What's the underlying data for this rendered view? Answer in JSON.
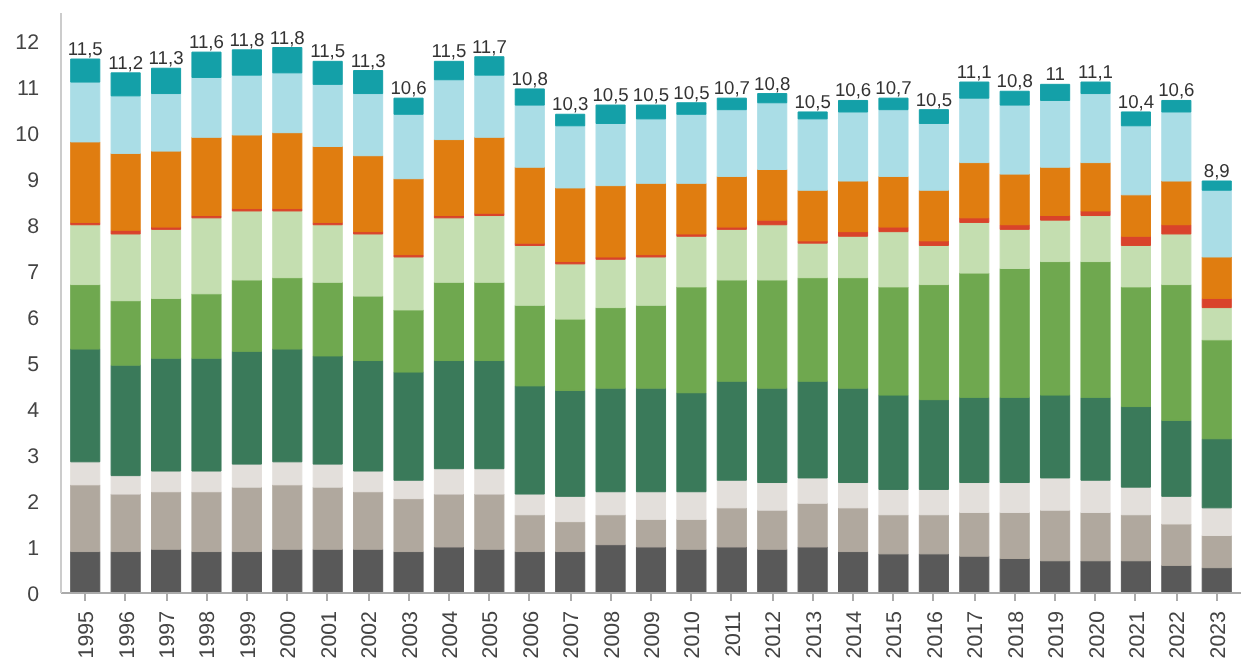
{
  "chart_data": {
    "type": "bar",
    "stacked": true,
    "categories": [
      "1995",
      "1996",
      "1997",
      "1998",
      "1999",
      "2000",
      "2001",
      "2002",
      "2003",
      "2004",
      "2005",
      "2006",
      "2007",
      "2008",
      "2009",
      "2010",
      "2011",
      "2012",
      "2013",
      "2014",
      "2015",
      "2016",
      "2017",
      "2018",
      "2019",
      "2020",
      "2021",
      "2022",
      "2023"
    ],
    "series": [
      {
        "color": "#595959",
        "values": [
          0.9,
          0.9,
          0.95,
          0.9,
          0.9,
          0.95,
          0.95,
          0.95,
          0.9,
          1.0,
          0.95,
          0.9,
          0.9,
          1.05,
          1.0,
          0.95,
          1.0,
          0.95,
          1.0,
          0.9,
          0.85,
          0.85,
          0.8,
          0.75,
          0.7,
          0.7,
          0.7,
          0.6,
          0.55
        ]
      },
      {
        "color": "#b0a89e",
        "values": [
          1.45,
          1.25,
          1.25,
          1.3,
          1.4,
          1.4,
          1.35,
          1.25,
          1.15,
          1.15,
          1.2,
          0.8,
          0.65,
          0.65,
          0.6,
          0.65,
          0.85,
          0.85,
          0.95,
          0.95,
          0.85,
          0.85,
          0.95,
          1.0,
          1.1,
          1.05,
          1.0,
          0.9,
          0.7
        ]
      },
      {
        "color": "#e3dfdb",
        "values": [
          0.5,
          0.4,
          0.45,
          0.45,
          0.5,
          0.5,
          0.5,
          0.45,
          0.4,
          0.55,
          0.55,
          0.45,
          0.55,
          0.5,
          0.6,
          0.6,
          0.6,
          0.6,
          0.55,
          0.55,
          0.55,
          0.55,
          0.65,
          0.65,
          0.7,
          0.7,
          0.6,
          0.6,
          0.6
        ]
      },
      {
        "color": "#3a7a5a",
        "values": [
          2.45,
          2.4,
          2.45,
          2.45,
          2.45,
          2.45,
          2.35,
          2.4,
          2.35,
          2.35,
          2.35,
          2.35,
          2.3,
          2.25,
          2.25,
          2.15,
          2.15,
          2.05,
          2.1,
          2.05,
          2.05,
          1.95,
          1.85,
          1.85,
          1.8,
          1.8,
          1.75,
          1.65,
          1.5
        ]
      },
      {
        "color": "#6fa84f",
        "values": [
          1.4,
          1.4,
          1.3,
          1.4,
          1.55,
          1.55,
          1.6,
          1.4,
          1.35,
          1.7,
          1.7,
          1.75,
          1.55,
          1.75,
          1.8,
          2.3,
          2.2,
          2.35,
          2.25,
          2.4,
          2.35,
          2.5,
          2.7,
          2.8,
          2.9,
          2.95,
          2.6,
          2.95,
          2.15
        ]
      },
      {
        "color": "#c4deb0",
        "values": [
          1.3,
          1.45,
          1.5,
          1.65,
          1.5,
          1.45,
          1.25,
          1.35,
          1.15,
          1.4,
          1.45,
          1.3,
          1.2,
          1.05,
          1.05,
          1.1,
          1.1,
          1.2,
          0.75,
          0.9,
          1.2,
          0.85,
          1.1,
          0.85,
          0.9,
          1.0,
          0.9,
          1.1,
          0.7
        ]
      },
      {
        "color": "#d9432b",
        "values": [
          0.05,
          0.08,
          0.05,
          0.05,
          0.05,
          0.05,
          0.05,
          0.05,
          0.05,
          0.05,
          0.05,
          0.05,
          0.05,
          0.05,
          0.05,
          0.05,
          0.05,
          0.1,
          0.05,
          0.1,
          0.1,
          0.1,
          0.1,
          0.1,
          0.1,
          0.1,
          0.2,
          0.2,
          0.2
        ]
      },
      {
        "color": "#e07d10",
        "values": [
          1.75,
          1.67,
          1.65,
          1.7,
          1.6,
          1.65,
          1.65,
          1.65,
          1.65,
          1.65,
          1.65,
          1.65,
          1.6,
          1.55,
          1.55,
          1.1,
          1.1,
          1.1,
          1.1,
          1.1,
          1.1,
          1.1,
          1.2,
          1.1,
          1.05,
          1.05,
          0.9,
          0.95,
          0.9
        ]
      },
      {
        "color": "#aadde6",
        "values": [
          1.3,
          1.25,
          1.25,
          1.3,
          1.3,
          1.3,
          1.35,
          1.35,
          1.4,
          1.3,
          1.35,
          1.35,
          1.35,
          1.35,
          1.4,
          1.5,
          1.45,
          1.45,
          1.55,
          1.5,
          1.45,
          1.45,
          1.4,
          1.5,
          1.45,
          1.5,
          1.5,
          1.5,
          1.45
        ]
      },
      {
        "color": "#14a0a8",
        "values": [
          0.5,
          0.5,
          0.55,
          0.55,
          0.55,
          0.55,
          0.5,
          0.5,
          0.35,
          0.4,
          0.4,
          0.35,
          0.25,
          0.4,
          0.3,
          0.25,
          0.25,
          0.2,
          0.15,
          0.25,
          0.25,
          0.3,
          0.35,
          0.3,
          0.35,
          0.25,
          0.3,
          0.25,
          0.2
        ]
      }
    ],
    "totals": [
      "11,5",
      "11,2",
      "11,3",
      "11,6",
      "11,8",
      "11,8",
      "11,5",
      "11,3",
      "10,6",
      "11,5",
      "11,7",
      "10,8",
      "10,3",
      "10,5",
      "10,5",
      "10,5",
      "10,7",
      "10,8",
      "10,5",
      "10,6",
      "10,7",
      "10,5",
      "11,1",
      "10,8",
      "11",
      "11,1",
      "10,4",
      "10,6",
      "8,9"
    ],
    "ylim": [
      0,
      12.6
    ],
    "yticks": [
      0,
      1,
      2,
      3,
      4,
      5,
      6,
      7,
      8,
      9,
      10,
      11,
      12
    ],
    "grid": false
  }
}
